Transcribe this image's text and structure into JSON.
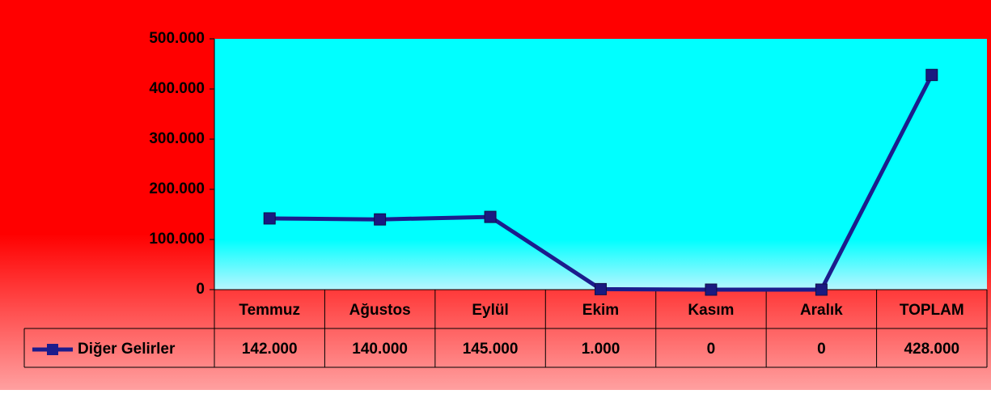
{
  "chart_data": {
    "type": "line",
    "categories": [
      "Temmuz",
      "Ağustos",
      "Eylül",
      "Ekim",
      "Kasım",
      "Aralık",
      "TOPLAM"
    ],
    "series": [
      {
        "name": "Diğer Gelirler",
        "color": "#1c1c8c",
        "values": [
          142000,
          140000,
          145000,
          1000,
          0,
          0,
          428000
        ],
        "value_labels": [
          "142.000",
          "140.000",
          "145.000",
          "1.000",
          "0",
          "0",
          "428.000"
        ]
      }
    ],
    "ylim": [
      0,
      500000
    ],
    "yticks": [
      0,
      {
        "value": 100000,
        "label": "100.000"
      },
      {
        "value": 200000,
        "label": "200.000"
      },
      {
        "value": 300000,
        "label": "300.000"
      },
      {
        "value": 400000,
        "label": "400.000"
      },
      {
        "value": 500000,
        "label": "500.000"
      }
    ]
  }
}
